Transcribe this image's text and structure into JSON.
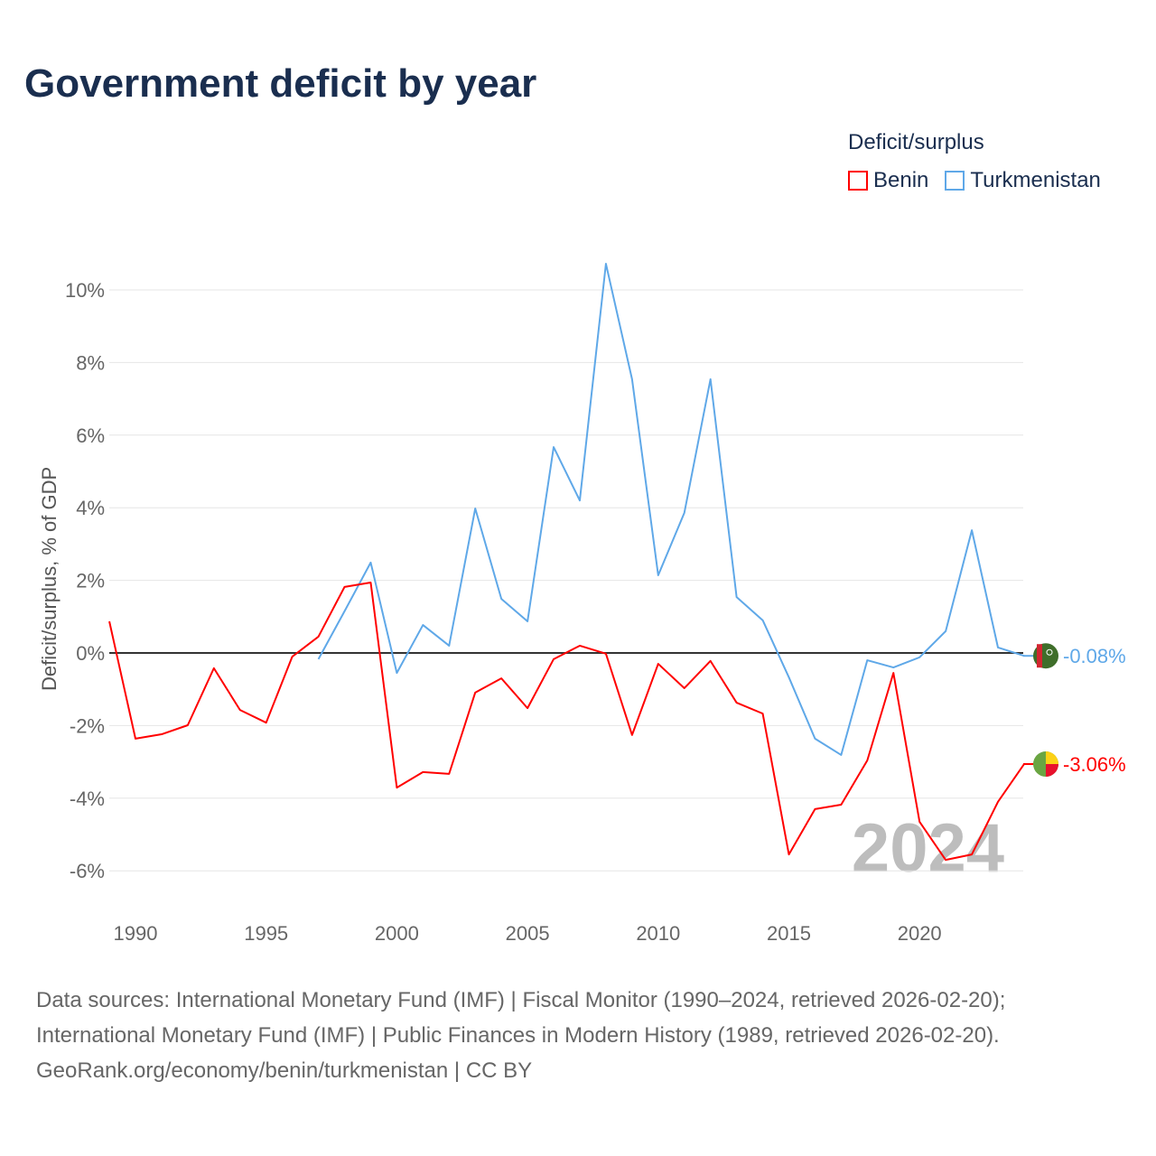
{
  "chart_data": {
    "type": "line",
    "title": "Government deficit by year",
    "ylabel": "Deficit/surplus, % of GDP",
    "xlabel": "",
    "legend_title": "Deficit/surplus",
    "legend_placement": "top-right",
    "ylim": [
      -7,
      11
    ],
    "xlim": [
      1989,
      2024
    ],
    "yticks": [
      -6,
      -4,
      -2,
      0,
      2,
      4,
      6,
      8,
      10
    ],
    "ytick_labels": [
      "-6%",
      "-4%",
      "-2%",
      "0%",
      "2%",
      "4%",
      "6%",
      "8%",
      "10%"
    ],
    "xticks": [
      1990,
      1995,
      2000,
      2005,
      2010,
      2015,
      2020
    ],
    "xtick_labels": [
      "1990",
      "1995",
      "2000",
      "2005",
      "2010",
      "2015",
      "2020"
    ],
    "watermark_year": "2024",
    "series": [
      {
        "name": "Benin",
        "color": "#ff0000",
        "end_label": "-3.06%",
        "x": [
          1989,
          1990,
          1991,
          1992,
          1993,
          1994,
          1995,
          1996,
          1997,
          1998,
          1999,
          2000,
          2001,
          2002,
          2003,
          2004,
          2005,
          2006,
          2007,
          2008,
          2009,
          2010,
          2011,
          2012,
          2013,
          2014,
          2015,
          2016,
          2017,
          2018,
          2019,
          2020,
          2021,
          2022,
          2023,
          2024
        ],
        "values": [
          0.87,
          -2.36,
          -2.24,
          -1.99,
          -0.42,
          -1.57,
          -1.92,
          -0.1,
          0.45,
          1.82,
          1.94,
          -3.71,
          -3.28,
          -3.33,
          -1.09,
          -0.7,
          -1.52,
          -0.17,
          0.2,
          -0.02,
          -2.26,
          -0.3,
          -0.97,
          -0.22,
          -1.37,
          -1.67,
          -5.55,
          -4.3,
          -4.18,
          -2.96,
          -0.55,
          -4.65,
          -5.7,
          -5.55,
          -4.1,
          -3.06
        ]
      },
      {
        "name": "Turkmenistan",
        "color": "#5fa8e8",
        "end_label": "-0.08%",
        "x": [
          1997,
          1998,
          1999,
          2000,
          2001,
          2002,
          2003,
          2004,
          2005,
          2006,
          2007,
          2008,
          2009,
          2010,
          2011,
          2012,
          2013,
          2014,
          2015,
          2016,
          2017,
          2018,
          2019,
          2020,
          2021,
          2022,
          2023,
          2024
        ],
        "values": [
          -0.17,
          1.15,
          2.49,
          -0.55,
          0.77,
          0.2,
          3.98,
          1.49,
          0.87,
          5.67,
          4.2,
          10.72,
          7.54,
          2.14,
          3.86,
          7.54,
          1.54,
          0.9,
          -0.67,
          -2.36,
          -2.81,
          -0.2,
          -0.4,
          -0.12,
          0.6,
          3.38,
          0.15,
          -0.08
        ]
      }
    ]
  },
  "footer": {
    "line1": "Data sources: International Monetary Fund (IMF) | Fiscal Monitor (1990–2024, retrieved 2026-02-20);",
    "line2": "International Monetary Fund (IMF) | Public Finances in Modern History (1989, retrieved 2026-02-20).",
    "line3": "GeoRank.org/economy/benin/turkmenistan | CC BY"
  }
}
